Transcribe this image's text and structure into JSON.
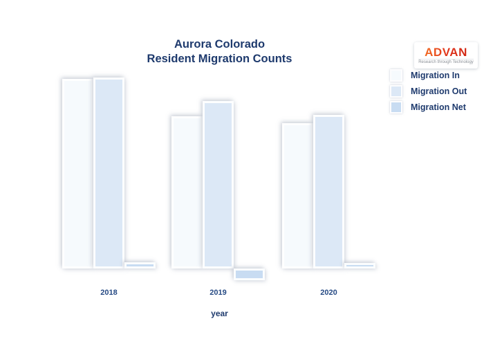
{
  "page": {
    "background": "#ffffff"
  },
  "title": {
    "line1": "Aurora Colorado",
    "line2": "Resident Migration Counts",
    "color": "#1e3a6d"
  },
  "logo": {
    "text": "ADVAN",
    "tagline": "Research through Technology",
    "brand_color": "#e0331c"
  },
  "chart_data": {
    "type": "bar",
    "title": "Aurora Colorado Resident Migration Counts",
    "categories": [
      "2018",
      "2019",
      "2020"
    ],
    "series": [
      {
        "name": "Migration In",
        "color": "#f6fafd",
        "values": [
          274,
          220,
          210
        ]
      },
      {
        "name": "Migration Out",
        "color": "#dce8f6",
        "values": [
          276,
          242,
          222
        ]
      },
      {
        "name": "Migration Net",
        "color": "#c8dcf2",
        "values": [
          9,
          -17,
          8
        ]
      }
    ],
    "xlabel": "year",
    "ylabel": "",
    "value_axis_visible": false,
    "units": "relative (no value axis labels shown)",
    "ylim": [
      -30,
      290
    ],
    "grid": false,
    "legend_position": "upper right"
  }
}
